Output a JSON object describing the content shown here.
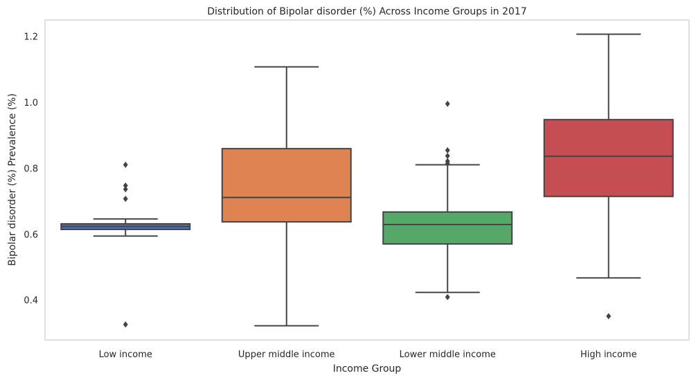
{
  "chart_data": {
    "type": "box",
    "title": "Distribution of Bipolar disorder (%) Across Income Groups in 2017",
    "xlabel": "Income Group",
    "ylabel": "Bipolar disorder (%) Prevalence (%)",
    "ylim": [
      0.28,
      1.25
    ],
    "yticks": [
      0.4,
      0.6,
      0.8,
      1.0,
      1.2
    ],
    "ytick_labels": [
      "0.4",
      "0.6",
      "0.8",
      "1.0",
      "1.2"
    ],
    "grid": false,
    "categories": [
      "Low income",
      "Upper middle income",
      "Lower middle income",
      "High income"
    ],
    "boxes": [
      {
        "category": "Low income",
        "color": "#4c72b0",
        "whisker_low": 0.595,
        "q1": 0.615,
        "median": 0.624,
        "q3": 0.632,
        "whisker_high": 0.647,
        "outliers": [
          0.811,
          0.748,
          0.737,
          0.708,
          0.327
        ]
      },
      {
        "category": "Upper middle income",
        "color": "#dd8452",
        "whisker_low": 0.323,
        "q1": 0.638,
        "median": 0.712,
        "q3": 0.86,
        "whisker_high": 1.108,
        "outliers": []
      },
      {
        "category": "Lower middle income",
        "color": "#55a868",
        "whisker_low": 0.424,
        "q1": 0.571,
        "median": 0.63,
        "q3": 0.668,
        "whisker_high": 0.811,
        "outliers": [
          0.996,
          0.855,
          0.838,
          0.822,
          0.815,
          0.41
        ]
      },
      {
        "category": "High income",
        "color": "#c44e52",
        "whisker_low": 0.468,
        "q1": 0.715,
        "median": 0.837,
        "q3": 0.948,
        "whisker_high": 1.207,
        "outliers": [
          0.352
        ]
      }
    ]
  }
}
